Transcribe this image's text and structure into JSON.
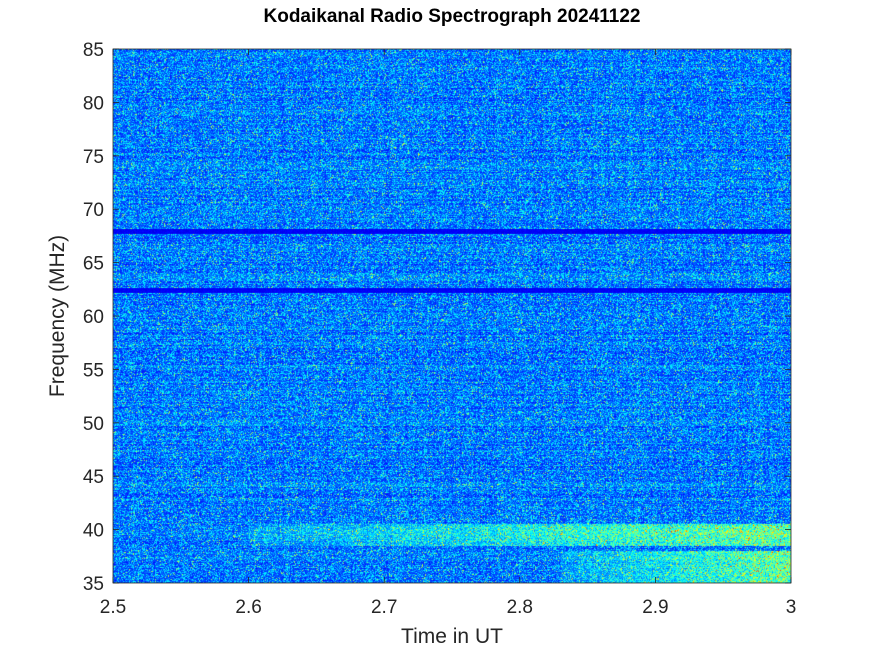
{
  "chart_data": {
    "type": "heatmap",
    "title": "Kodaikanal Radio Spectrograph  20241122",
    "xlabel": "Time in UT",
    "ylabel": "Frequency (MHz)",
    "xlim": [
      2.5,
      3
    ],
    "ylim": [
      35,
      85
    ],
    "x_ticks": [
      2.5,
      2.6,
      2.7,
      2.8,
      2.9,
      3
    ],
    "x_tick_labels": [
      "2.5",
      "2.6",
      "2.7",
      "2.8",
      "2.9",
      "3"
    ],
    "y_ticks": [
      35,
      40,
      45,
      50,
      55,
      60,
      65,
      70,
      75,
      80,
      85
    ],
    "y_tick_labels": [
      "35",
      "40",
      "45",
      "50",
      "55",
      "60",
      "65",
      "70",
      "75",
      "80",
      "85"
    ],
    "colormap": "jet",
    "grid": false,
    "dark_bands_mhz": [
      67.9,
      62.4
    ],
    "enhanced_emission": [
      {
        "freq_range_mhz": [
          35,
          38
        ],
        "time_range_ut": [
          2.83,
          3.0
        ]
      },
      {
        "freq_range_mhz": [
          38.5,
          40.5
        ],
        "time_range_ut": [
          2.6,
          3.0
        ]
      }
    ]
  }
}
